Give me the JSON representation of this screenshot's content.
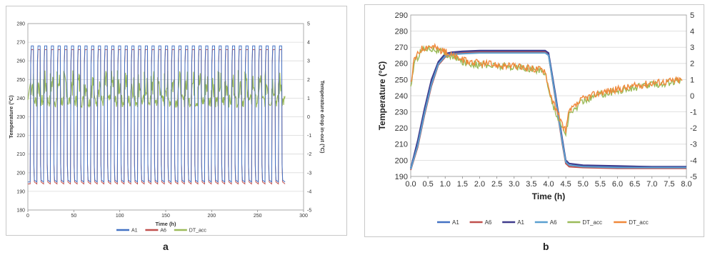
{
  "chart_data": [
    {
      "type": "line",
      "panel_label": "a",
      "xlabel": "Time (h)",
      "ylabel": "Temperature (°C)",
      "y2label": "Temperature drop in-out (°C)",
      "xlim": [
        0,
        300
      ],
      "ylim": [
        180,
        280
      ],
      "y2lim": [
        -5,
        5
      ],
      "xticks": [
        "0",
        "50",
        "100",
        "150",
        "200",
        "250",
        "300"
      ],
      "yticks": [
        "180",
        "190",
        "200",
        "210",
        "220",
        "230",
        "240",
        "250",
        "260",
        "270",
        "280"
      ],
      "y2ticks": [
        "-5",
        "-4",
        "-3",
        "-2",
        "-1",
        "0",
        "1",
        "2",
        "3",
        "4",
        "5"
      ],
      "cycles": 38,
      "cycle_period_h": 7.3,
      "series": [
        {
          "name": "A1",
          "color": "#4472c4",
          "axis": "left",
          "high": 268,
          "low": 195
        },
        {
          "name": "A6",
          "color": "#c0504d",
          "axis": "left",
          "high": 266,
          "low": 194
        },
        {
          "name": "DT_acc",
          "color": "#9bbb59",
          "axis": "right",
          "high_band": [
            1.0,
            2.5
          ],
          "low_band": [
            0.5,
            1.2
          ]
        }
      ],
      "grid": true,
      "legend_position": "bottom"
    },
    {
      "type": "line",
      "panel_label": "b",
      "xlabel": "Time (h)",
      "ylabel": "Temperature (°C)",
      "xlim": [
        0,
        8
      ],
      "ylim": [
        190,
        290
      ],
      "y2lim": [
        -5,
        5
      ],
      "xticks": [
        "0.0",
        "0.5",
        "1.0",
        "1.5",
        "2.0",
        "2.5",
        "3.0",
        "3.5",
        "4.0",
        "4.5",
        "5.0",
        "5.5",
        "6.0",
        "6.5",
        "7.0",
        "7.5",
        "8.0"
      ],
      "yticks": [
        "190",
        "200",
        "210",
        "220",
        "230",
        "240",
        "250",
        "260",
        "270",
        "280",
        "290"
      ],
      "y2ticks": [
        "-5",
        "-4",
        "-3",
        "-2",
        "-1",
        "0",
        "1",
        "2",
        "3",
        "4",
        "5"
      ],
      "series": [
        {
          "name": "A1",
          "color": "#4472c4",
          "axis": "left",
          "x": [
            0,
            0.2,
            0.4,
            0.6,
            0.8,
            1.0,
            1.2,
            1.5,
            2.0,
            3.0,
            3.9,
            4.0,
            4.2,
            4.4,
            4.5,
            4.6,
            5.0,
            6.0,
            7.0,
            8.0
          ],
          "y": [
            195,
            210,
            230,
            248,
            260,
            265,
            266,
            267,
            267.5,
            267.5,
            267.5,
            266,
            240,
            212,
            199,
            197,
            196.5,
            196,
            196,
            196
          ]
        },
        {
          "name": "A6",
          "color": "#c0504d",
          "axis": "left",
          "x": [
            0,
            0.2,
            0.4,
            0.6,
            0.8,
            1.0,
            1.2,
            1.5,
            2.0,
            3.0,
            3.9,
            4.0,
            4.2,
            4.4,
            4.5,
            4.6,
            5.0,
            6.0,
            7.0,
            8.0
          ],
          "y": [
            194,
            208,
            228,
            246,
            259,
            264,
            265.5,
            266.5,
            267,
            267,
            267,
            265,
            238,
            210,
            198,
            196,
            195.5,
            195,
            195,
            195
          ]
        },
        {
          "name": "A1",
          "color": "#403c8c",
          "axis": "left",
          "x": [
            0,
            0.2,
            0.4,
            0.6,
            0.8,
            1.0,
            1.2,
            1.5,
            2.0,
            3.0,
            3.9,
            4.0,
            4.2,
            4.4,
            4.5,
            4.6,
            5.0,
            6.0,
            7.0,
            8.0
          ],
          "y": [
            195,
            212,
            232,
            250,
            261,
            266,
            267,
            267.5,
            268,
            268,
            268,
            266.5,
            241,
            213,
            200,
            198,
            197,
            196.5,
            196,
            196
          ]
        },
        {
          "name": "A6",
          "color": "#5aa0d0",
          "axis": "left",
          "x": [
            0,
            0.2,
            0.4,
            0.6,
            0.8,
            1.0,
            1.2,
            1.5,
            2.0,
            3.0,
            3.9,
            4.0,
            4.2,
            4.4,
            4.5,
            4.6,
            5.0,
            6.0,
            7.0,
            8.0
          ],
          "y": [
            194.5,
            209,
            229,
            247,
            259.5,
            264.5,
            265.5,
            266,
            266.5,
            266.5,
            266.5,
            265,
            239,
            211,
            199,
            197,
            196,
            195.5,
            195.5,
            195.5
          ]
        },
        {
          "name": "DT_acc",
          "color": "#9bbb59",
          "axis": "right",
          "x": [
            0,
            0.1,
            0.3,
            0.5,
            0.7,
            1.0,
            1.5,
            2.0,
            3.0,
            3.9,
            4.0,
            4.2,
            4.4,
            4.5,
            4.6,
            5.0,
            5.5,
            6.0,
            6.5,
            7.0,
            7.5,
            7.9
          ],
          "y": [
            0.5,
            2.0,
            2.8,
            3.0,
            2.9,
            2.6,
            2.1,
            1.9,
            1.8,
            1.5,
            0.3,
            -1.0,
            -2.0,
            -2.3,
            -1.2,
            -0.3,
            0.1,
            0.3,
            0.5,
            0.7,
            0.8,
            0.9
          ]
        },
        {
          "name": "DT_acc",
          "color": "#f0883a",
          "axis": "right",
          "x": [
            0,
            0.1,
            0.3,
            0.5,
            0.7,
            1.0,
            1.5,
            2.0,
            3.0,
            3.9,
            4.0,
            4.2,
            4.4,
            4.5,
            4.6,
            5.0,
            5.5,
            6.0,
            6.5,
            7.0,
            7.5,
            7.9
          ],
          "y": [
            0.7,
            2.2,
            2.9,
            3.1,
            3.0,
            2.7,
            2.2,
            2.0,
            1.8,
            1.6,
            0.5,
            -0.8,
            -1.8,
            -2.1,
            -1.0,
            -0.2,
            0.2,
            0.4,
            0.6,
            0.8,
            0.9,
            1.0
          ]
        }
      ],
      "grid": true,
      "legend_position": "bottom"
    }
  ]
}
